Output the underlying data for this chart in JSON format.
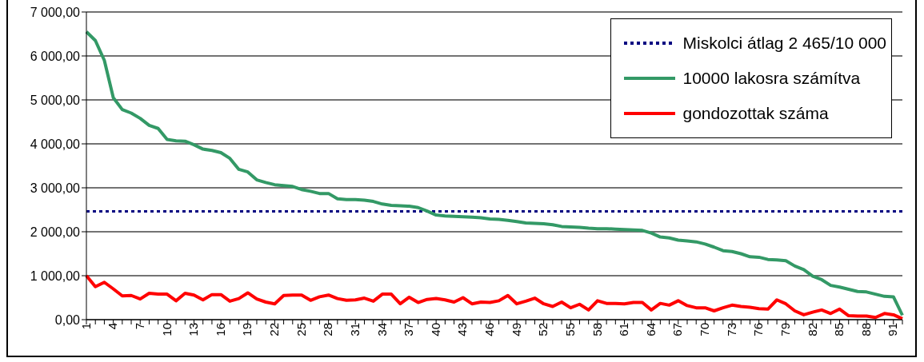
{
  "chart_data": {
    "type": "line",
    "categories": [
      "1",
      null,
      null,
      "4",
      null,
      null,
      "7",
      null,
      null,
      "10",
      null,
      null,
      "13",
      null,
      null,
      "16",
      null,
      null,
      "19",
      null,
      null,
      "22",
      null,
      null,
      "25",
      null,
      null,
      "28",
      null,
      null,
      "31",
      null,
      null,
      "34",
      null,
      null,
      "37",
      null,
      null,
      "40",
      null,
      null,
      "43",
      null,
      null,
      "46",
      null,
      null,
      "49",
      null,
      null,
      "52",
      null,
      null,
      "55",
      null,
      null,
      "58",
      null,
      null,
      "61",
      null,
      null,
      "64",
      null,
      null,
      "67",
      null,
      null,
      "70",
      null,
      null,
      "73",
      null,
      null,
      "76",
      null,
      null,
      "79",
      null,
      null,
      "82",
      null,
      null,
      "85",
      null,
      null,
      "88",
      null,
      null,
      "91",
      null
    ],
    "series": [
      {
        "name": "10000 lakosra számítva",
        "color": "#339966",
        "values": [
          6550,
          6350,
          5900,
          5050,
          4780,
          4700,
          4580,
          4420,
          4350,
          4100,
          4070,
          4060,
          3980,
          3880,
          3850,
          3800,
          3670,
          3420,
          3360,
          3180,
          3120,
          3070,
          3050,
          3030,
          2960,
          2920,
          2870,
          2870,
          2750,
          2730,
          2730,
          2720,
          2690,
          2630,
          2600,
          2590,
          2580,
          2550,
          2470,
          2380,
          2360,
          2350,
          2340,
          2330,
          2320,
          2290,
          2280,
          2260,
          2230,
          2200,
          2190,
          2180,
          2160,
          2120,
          2110,
          2100,
          2080,
          2070,
          2070,
          2060,
          2050,
          2040,
          2030,
          1970,
          1880,
          1860,
          1810,
          1790,
          1770,
          1720,
          1650,
          1570,
          1550,
          1500,
          1430,
          1420,
          1370,
          1360,
          1340,
          1220,
          1140,
          990,
          910,
          780,
          740,
          690,
          640,
          630,
          580,
          530,
          520,
          100
        ]
      },
      {
        "name": "gondozottak száma",
        "color": "#ff0000",
        "values": [
          1000,
          750,
          850,
          700,
          540,
          550,
          470,
          600,
          580,
          580,
          430,
          600,
          560,
          450,
          570,
          570,
          420,
          480,
          610,
          470,
          400,
          360,
          550,
          560,
          560,
          440,
          520,
          560,
          480,
          440,
          450,
          490,
          420,
          580,
          580,
          360,
          510,
          390,
          460,
          480,
          450,
          400,
          500,
          360,
          400,
          390,
          430,
          550,
          360,
          420,
          490,
          360,
          300,
          400,
          270,
          350,
          220,
          430,
          370,
          370,
          360,
          390,
          390,
          220,
          370,
          330,
          430,
          320,
          270,
          270,
          200,
          270,
          330,
          300,
          280,
          250,
          240,
          450,
          360,
          200,
          110,
          170,
          220,
          140,
          240,
          90,
          80,
          80,
          50,
          140,
          110,
          20
        ]
      }
    ],
    "ref_lines": [
      {
        "axis": "y",
        "value": 2465,
        "label": "Miskolci átlag  2 465/10 000",
        "color": "#000080",
        "line_style": "dotted"
      }
    ],
    "ylim": [
      0,
      7000
    ],
    "yticks": [
      {
        "value": 0,
        "label": "0,00"
      },
      {
        "value": 1000,
        "label": "1 000,00"
      },
      {
        "value": 2000,
        "label": "2 000,00"
      },
      {
        "value": 3000,
        "label": "3 000,00"
      },
      {
        "value": 4000,
        "label": "4 000,00"
      },
      {
        "value": 5000,
        "label": "5 000,00"
      },
      {
        "value": 6000,
        "label": "6 000,00"
      },
      {
        "value": 7000,
        "label": "7 000,00"
      }
    ],
    "grid": "y",
    "legend": "top right",
    "marker": "none",
    "line_style": "solid"
  }
}
